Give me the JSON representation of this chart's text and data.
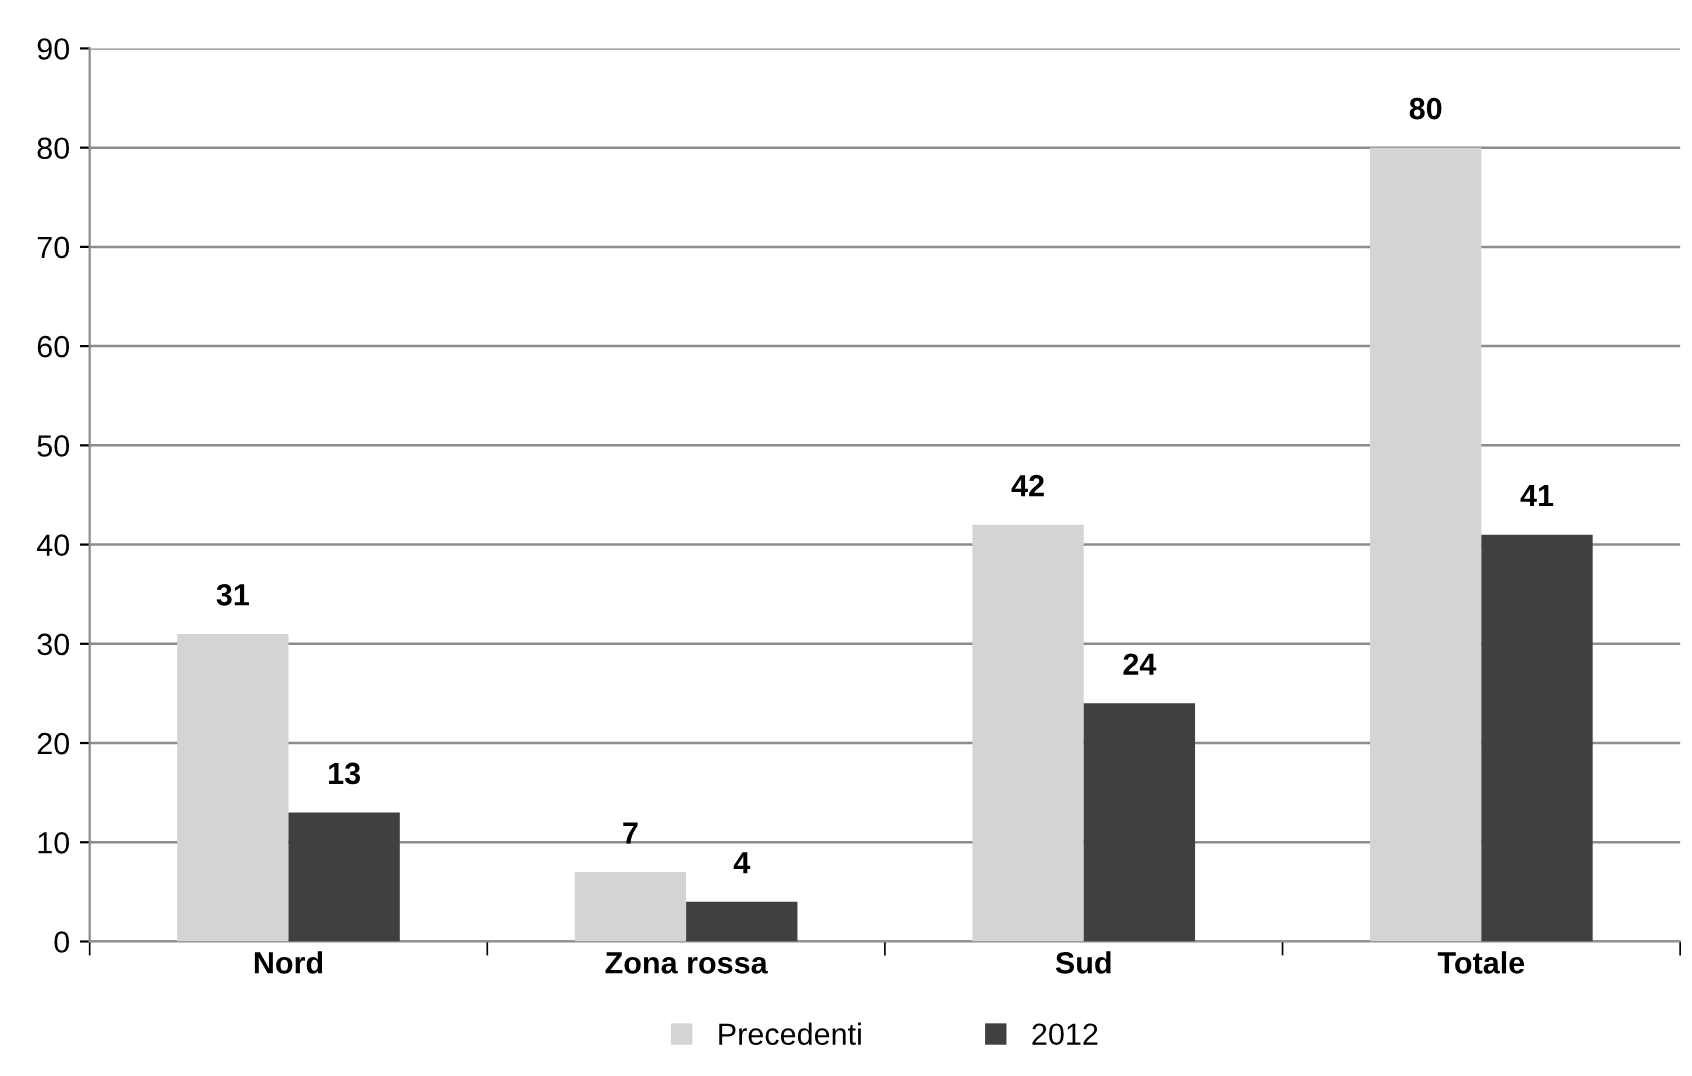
{
  "chart_data": {
    "type": "bar",
    "categories": [
      "Nord",
      "Zona rossa",
      "Sud",
      "Totale"
    ],
    "series": [
      {
        "name": "Precedenti",
        "color": "#d4d4d4",
        "values": [
          31,
          7,
          42,
          80
        ]
      },
      {
        "name": "2012",
        "color": "#404040",
        "values": [
          13,
          4,
          24,
          41
        ]
      }
    ],
    "ylim": [
      0,
      90
    ],
    "yticks": [
      0,
      10,
      20,
      30,
      40,
      50,
      60,
      70,
      80,
      90
    ],
    "grid": "y",
    "legend": "bottom",
    "data_labels": true
  }
}
